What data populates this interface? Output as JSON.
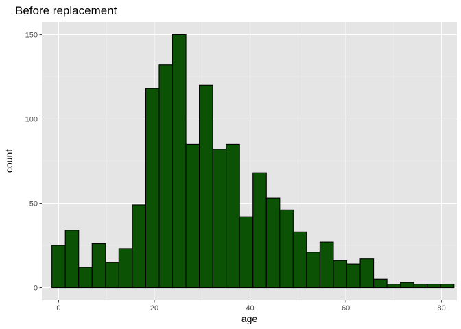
{
  "chart_data": {
    "type": "bar",
    "title": "Before replacement",
    "xlabel": "age",
    "ylabel": "count",
    "xlim": [
      -3.5,
      83.2
    ],
    "ylim": [
      -7.5,
      157.5
    ],
    "xticks": [
      0,
      20,
      40,
      60,
      80
    ],
    "yticks": [
      0,
      50,
      100,
      150
    ],
    "grid": true,
    "bin_width": 2.8,
    "first_bin_start": -1.4,
    "bars": [
      {
        "x": 0,
        "count": 25
      },
      {
        "x": 2.8,
        "count": 34
      },
      {
        "x": 5.6,
        "count": 12
      },
      {
        "x": 8.4,
        "count": 26
      },
      {
        "x": 11.2,
        "count": 15
      },
      {
        "x": 14,
        "count": 23
      },
      {
        "x": 16.8,
        "count": 49
      },
      {
        "x": 19.6,
        "count": 118
      },
      {
        "x": 22.4,
        "count": 132
      },
      {
        "x": 25.2,
        "count": 150
      },
      {
        "x": 28,
        "count": 85
      },
      {
        "x": 30.8,
        "count": 120
      },
      {
        "x": 33.6,
        "count": 82
      },
      {
        "x": 36.4,
        "count": 85
      },
      {
        "x": 39.2,
        "count": 42
      },
      {
        "x": 42,
        "count": 68
      },
      {
        "x": 44.8,
        "count": 53
      },
      {
        "x": 47.6,
        "count": 46
      },
      {
        "x": 50.4,
        "count": 33
      },
      {
        "x": 53.2,
        "count": 21
      },
      {
        "x": 56,
        "count": 27
      },
      {
        "x": 58.8,
        "count": 16
      },
      {
        "x": 61.6,
        "count": 14
      },
      {
        "x": 64.4,
        "count": 17
      },
      {
        "x": 67.2,
        "count": 5
      },
      {
        "x": 70,
        "count": 2
      },
      {
        "x": 72.8,
        "count": 3
      },
      {
        "x": 75.6,
        "count": 2
      },
      {
        "x": 78.4,
        "count": 2
      },
      {
        "x": 81.2,
        "count": 2
      }
    ],
    "colors": {
      "bar_fill": "#0b5205",
      "bar_stroke": "#000000",
      "panel_background": "#e5e5e5"
    }
  }
}
